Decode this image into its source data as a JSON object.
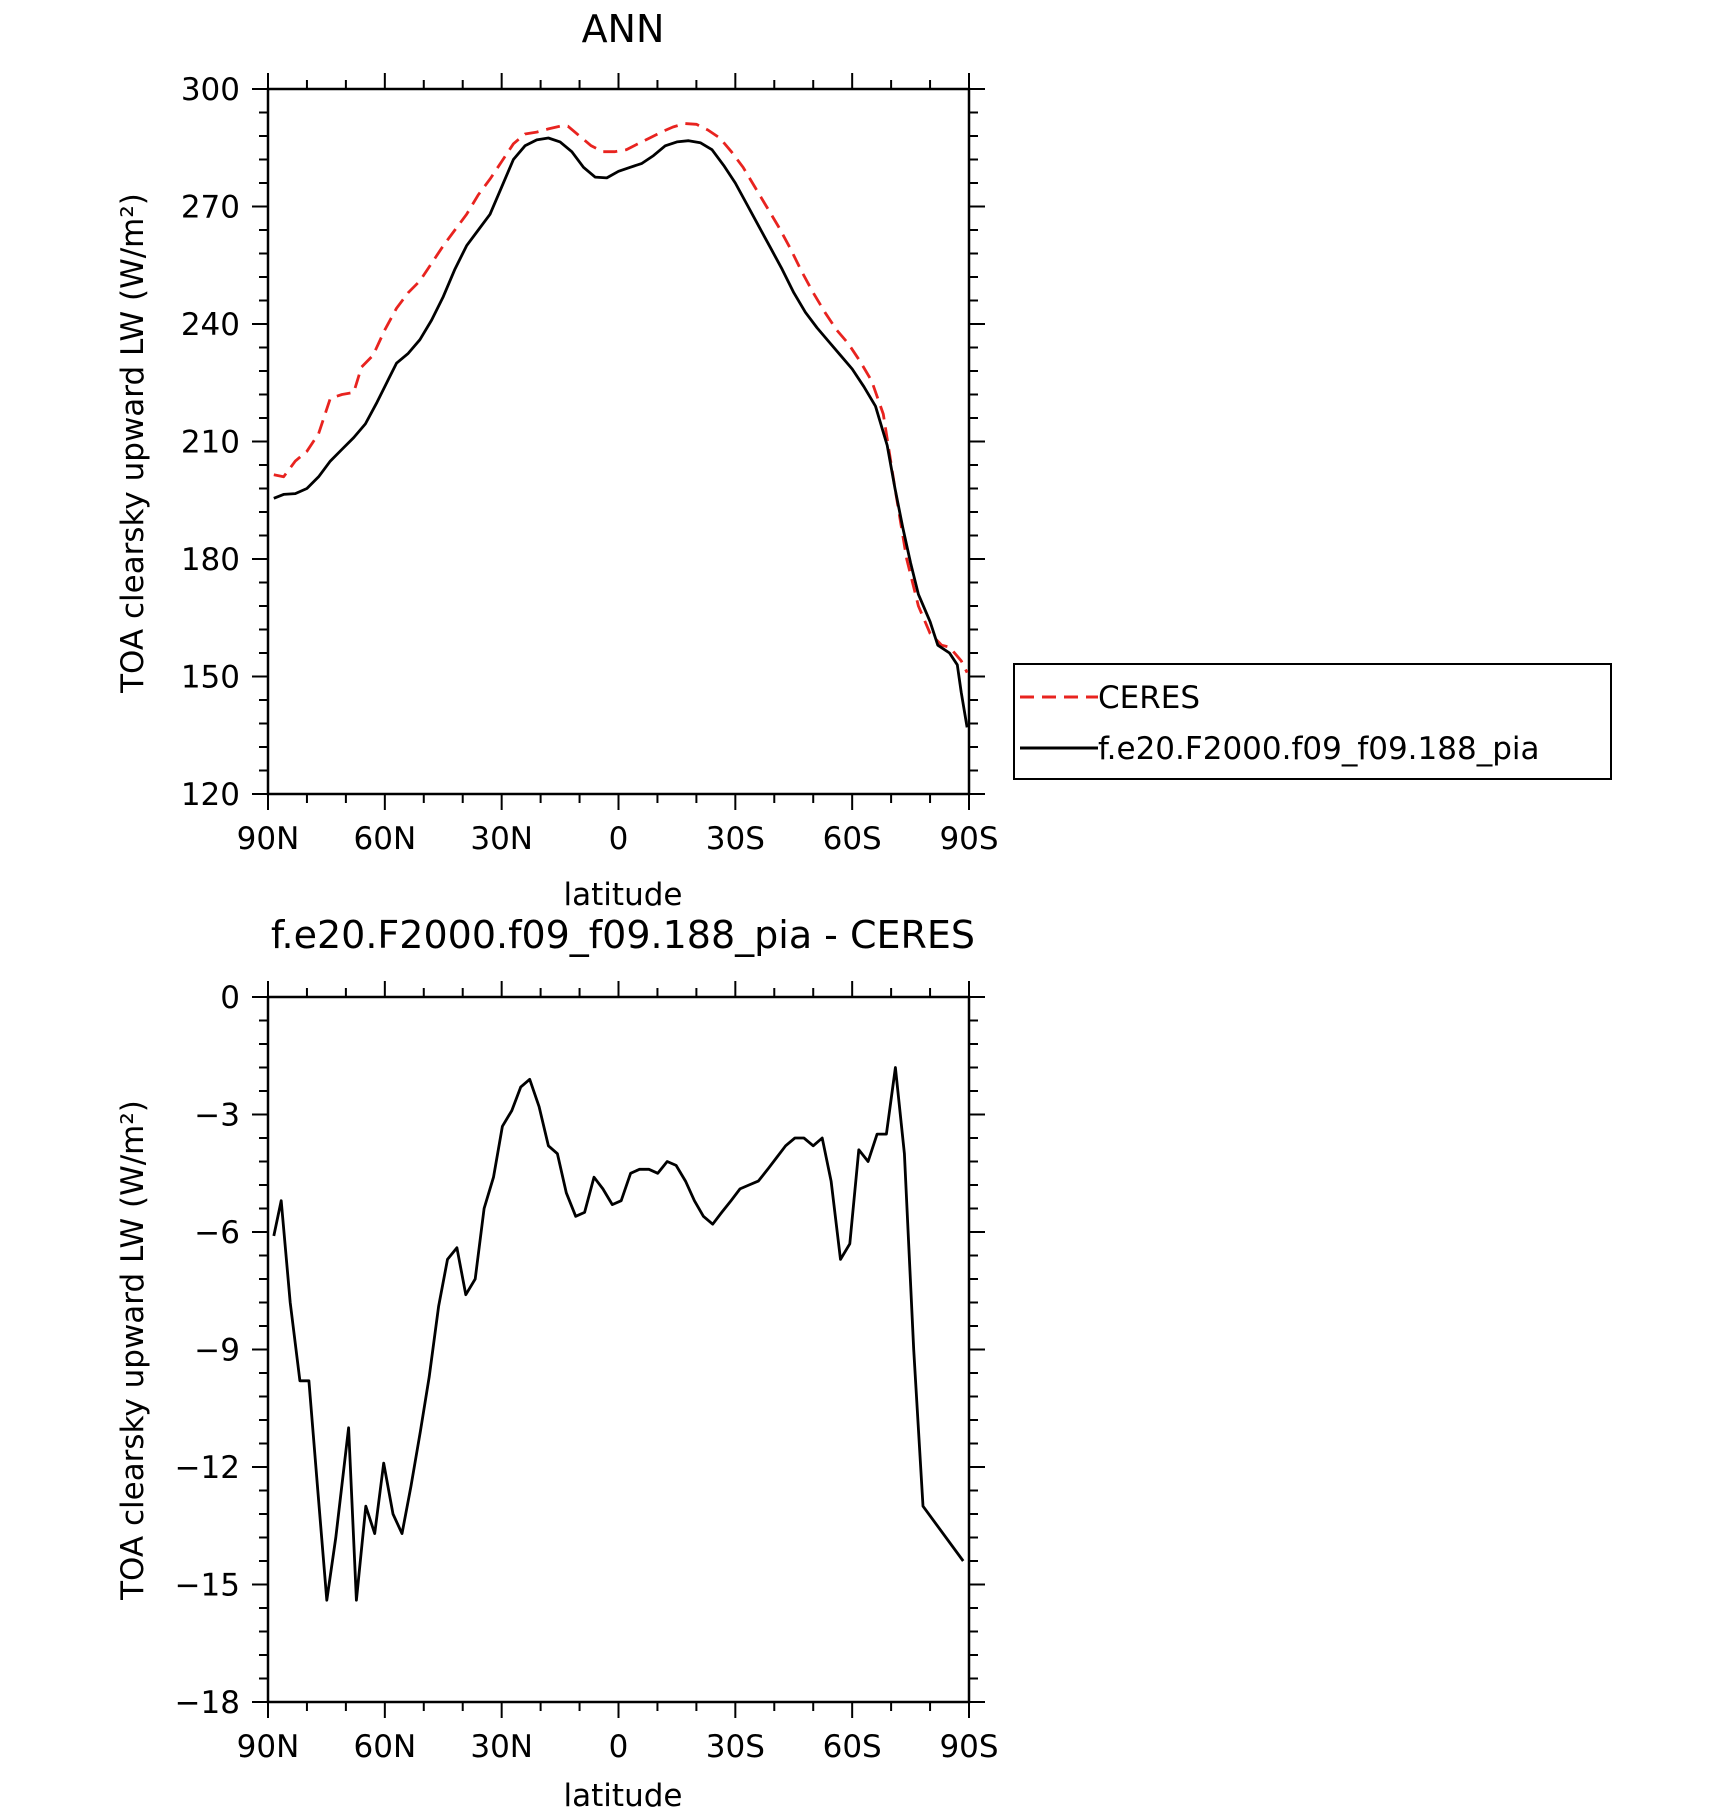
{
  "chart_data": [
    {
      "type": "line",
      "title": "ANN",
      "xlabel": "latitude",
      "ylabel": "TOA clearsky upward LW (W/m²)",
      "xlim": [
        90,
        -90
      ],
      "ylim": [
        120,
        300
      ],
      "xticks": [
        90,
        60,
        30,
        0,
        -30,
        -60,
        -90
      ],
      "xtick_labels": [
        "90N",
        "60N",
        "30N",
        "0",
        "30S",
        "60S",
        "90S"
      ],
      "yticks": [
        120,
        150,
        180,
        210,
        240,
        270,
        300
      ],
      "ytick_labels": [
        "120",
        "150",
        "180",
        "210",
        "240",
        "270",
        "300"
      ],
      "grid": false,
      "legend_position": "right",
      "series": [
        {
          "name": "CERES",
          "color": "#e8231f",
          "style": "dashed",
          "points": [
            [
              88.5,
              201.5
            ],
            [
              86,
              201
            ],
            [
              83,
              205
            ],
            [
              80,
              207.5
            ],
            [
              77,
              212
            ],
            [
              74,
              221
            ],
            [
              71,
              222
            ],
            [
              68,
              222.5
            ],
            [
              66,
              229
            ],
            [
              63,
              232
            ],
            [
              60,
              238.5
            ],
            [
              57,
              244
            ],
            [
              54,
              248
            ],
            [
              51,
              251
            ],
            [
              48,
              255.5
            ],
            [
              45,
              260
            ],
            [
              42,
              264
            ],
            [
              39,
              268
            ],
            [
              36,
              273
            ],
            [
              33,
              277
            ],
            [
              30,
              281.5
            ],
            [
              27,
              286
            ],
            [
              24,
              288.5
            ],
            [
              21,
              289
            ],
            [
              18,
              289.8
            ],
            [
              15,
              290.5
            ],
            [
              13,
              290.5
            ],
            [
              10,
              288
            ],
            [
              7,
              285.5
            ],
            [
              4,
              284
            ],
            [
              1,
              284
            ],
            [
              -2,
              284.5
            ],
            [
              -5,
              286
            ],
            [
              -8,
              287.5
            ],
            [
              -11,
              289
            ],
            [
              -14,
              290.3
            ],
            [
              -17,
              291.2
            ],
            [
              -20,
              291
            ],
            [
              -23,
              289.5
            ],
            [
              -26,
              287.5
            ],
            [
              -29,
              284
            ],
            [
              -32,
              280
            ],
            [
              -35,
              275
            ],
            [
              -38,
              270
            ],
            [
              -41,
              265
            ],
            [
              -44,
              259.5
            ],
            [
              -47,
              253.5
            ],
            [
              -50,
              248
            ],
            [
              -53,
              243
            ],
            [
              -56,
              238.5
            ],
            [
              -59,
              235
            ],
            [
              -62,
              230.5
            ],
            [
              -65,
              225.5
            ],
            [
              -68,
              217
            ],
            [
              -71,
              198
            ],
            [
              -74,
              180
            ],
            [
              -77,
              168
            ],
            [
              -80,
              161
            ],
            [
              -83,
              158
            ],
            [
              -85,
              157.5
            ],
            [
              -88,
              154
            ],
            [
              -89.5,
              151
            ]
          ]
        },
        {
          "name": "f.e20.F2000.f09_f09.188_pia",
          "color": "#000000",
          "style": "solid",
          "points": [
            [
              88.5,
              195.5
            ],
            [
              86,
              196.5
            ],
            [
              83,
              196.7
            ],
            [
              80,
              198
            ],
            [
              77,
              201
            ],
            [
              74,
              205
            ],
            [
              71,
              208
            ],
            [
              68,
              211
            ],
            [
              65,
              214.5
            ],
            [
              62,
              220
            ],
            [
              59,
              226
            ],
            [
              57,
              230
            ],
            [
              54,
              232.5
            ],
            [
              51,
              236
            ],
            [
              48,
              241
            ],
            [
              45,
              247
            ],
            [
              42,
              254
            ],
            [
              39,
              260
            ],
            [
              36,
              264
            ],
            [
              33,
              268
            ],
            [
              30,
              275
            ],
            [
              27,
              282
            ],
            [
              24,
              285.5
            ],
            [
              21,
              287
            ],
            [
              18,
              287.5
            ],
            [
              15,
              286.5
            ],
            [
              12,
              284
            ],
            [
              9,
              280
            ],
            [
              6,
              277.5
            ],
            [
              3,
              277.3
            ],
            [
              0,
              279
            ],
            [
              -3,
              280
            ],
            [
              -6,
              281
            ],
            [
              -9,
              283
            ],
            [
              -12,
              285.5
            ],
            [
              -15,
              286.5
            ],
            [
              -18,
              286.8
            ],
            [
              -21,
              286.3
            ],
            [
              -24,
              284.5
            ],
            [
              -27,
              280.5
            ],
            [
              -30,
              276
            ],
            [
              -33,
              270.5
            ],
            [
              -36,
              265
            ],
            [
              -39,
              259.5
            ],
            [
              -42,
              254
            ],
            [
              -45,
              248
            ],
            [
              -48,
              243
            ],
            [
              -51,
              239
            ],
            [
              -54,
              235.5
            ],
            [
              -57,
              232
            ],
            [
              -60,
              228.5
            ],
            [
              -63,
              224
            ],
            [
              -66,
              219
            ],
            [
              -69,
              209
            ],
            [
              -71,
              198
            ],
            [
              -73,
              188
            ],
            [
              -75,
              179
            ],
            [
              -77,
              171
            ],
            [
              -80,
              164
            ],
            [
              -82,
              158
            ],
            [
              -85,
              156
            ],
            [
              -87,
              153
            ],
            [
              -88,
              146
            ],
            [
              -89.5,
              137
            ]
          ]
        }
      ]
    },
    {
      "type": "line",
      "title": "f.e20.F2000.f09_f09.188_pia - CERES",
      "xlabel": "latitude",
      "ylabel": "TOA clearsky upward LW (W/m²)",
      "xlim": [
        90,
        -90
      ],
      "ylim": [
        -18,
        0
      ],
      "xticks": [
        90,
        60,
        30,
        0,
        -30,
        -60,
        -90
      ],
      "xtick_labels": [
        "90N",
        "60N",
        "30N",
        "0",
        "30S",
        "60S",
        "90S"
      ],
      "yticks": [
        -18,
        -15,
        -12,
        -9,
        -6,
        -3,
        0
      ],
      "ytick_labels": [
        "−18",
        "−15",
        "−12",
        "−9",
        "−6",
        "−3",
        "0"
      ],
      "grid": false,
      "series": [
        {
          "color": "#000000",
          "style": "solid",
          "points": [
            [
              88.5,
              -6.1
            ],
            [
              86.6,
              -5.2
            ],
            [
              84.3,
              -7.8
            ],
            [
              81.8,
              -9.8
            ],
            [
              79.5,
              -9.8
            ],
            [
              77.2,
              -12.6
            ],
            [
              74.9,
              -15.4
            ],
            [
              72.6,
              -13.8
            ],
            [
              69.3,
              -11.0
            ],
            [
              67.3,
              -15.4
            ],
            [
              64.9,
              -13.0
            ],
            [
              62.6,
              -13.7
            ],
            [
              60.3,
              -11.9
            ],
            [
              57.9,
              -13.2
            ],
            [
              55.6,
              -13.7
            ],
            [
              53.3,
              -12.5
            ],
            [
              50.9,
              -11.1
            ],
            [
              48.6,
              -9.7
            ],
            [
              46.2,
              -7.9
            ],
            [
              43.9,
              -6.7
            ],
            [
              41.5,
              -6.4
            ],
            [
              39.2,
              -7.6
            ],
            [
              36.8,
              -7.2
            ],
            [
              34.5,
              -5.4
            ],
            [
              32.1,
              -4.6
            ],
            [
              29.8,
              -3.3
            ],
            [
              27.4,
              -2.9
            ],
            [
              25.1,
              -2.3
            ],
            [
              22.8,
              -2.1
            ],
            [
              20.4,
              -2.8
            ],
            [
              18.0,
              -3.8
            ],
            [
              15.7,
              -4.0
            ],
            [
              13.4,
              -5.0
            ],
            [
              11.0,
              -5.6
            ],
            [
              8.7,
              -5.5
            ],
            [
              6.3,
              -4.6
            ],
            [
              4.0,
              -4.9
            ],
            [
              1.6,
              -5.3
            ],
            [
              -0.7,
              -5.2
            ],
            [
              -3.1,
              -4.5
            ],
            [
              -5.4,
              -4.4
            ],
            [
              -7.8,
              -4.4
            ],
            [
              -10.1,
              -4.5
            ],
            [
              -12.5,
              -4.2
            ],
            [
              -14.8,
              -4.3
            ],
            [
              -17.2,
              -4.7
            ],
            [
              -19.5,
              -5.2
            ],
            [
              -21.8,
              -5.6
            ],
            [
              -24.2,
              -5.8
            ],
            [
              -26.5,
              -5.5
            ],
            [
              -28.9,
              -5.2
            ],
            [
              -31.2,
              -4.9
            ],
            [
              -33.5,
              -4.8
            ],
            [
              -35.9,
              -4.7
            ],
            [
              -38.3,
              -4.4
            ],
            [
              -40.6,
              -4.1
            ],
            [
              -42.9,
              -3.8
            ],
            [
              -45.3,
              -3.6
            ],
            [
              -47.6,
              -3.6
            ],
            [
              -50.0,
              -3.8
            ],
            [
              -52.3,
              -3.6
            ],
            [
              -54.6,
              -4.7
            ],
            [
              -57.0,
              -6.7
            ],
            [
              -59.4,
              -6.3
            ],
            [
              -61.7,
              -3.9
            ],
            [
              -64.1,
              -4.2
            ],
            [
              -66.4,
              -3.5
            ],
            [
              -68.8,
              -3.5
            ],
            [
              -71.1,
              -1.8
            ],
            [
              -73.4,
              -4.0
            ],
            [
              -75.8,
              -9.0
            ],
            [
              -78.2,
              -13.0
            ],
            [
              -88.5,
              -14.4
            ]
          ]
        }
      ]
    }
  ]
}
